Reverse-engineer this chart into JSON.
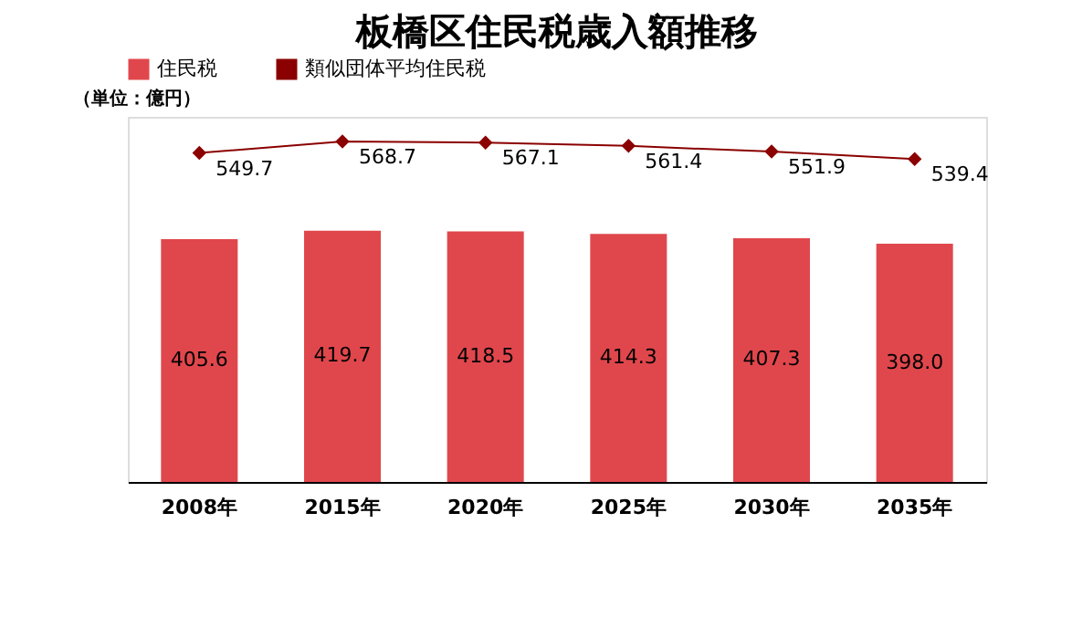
{
  "chart_data": {
    "type": "bar",
    "title": "板橋区住民税歳入額推移",
    "categories": [
      "2008年",
      "2015年",
      "2020年",
      "2025年",
      "2030年",
      "2035年"
    ],
    "series": [
      {
        "name": "住民税",
        "color": "#e0474c",
        "values": [
          405.6,
          419.7,
          418.5,
          414.3,
          407.3,
          398.0
        ],
        "value_labels": [
          "405.6",
          "419.7",
          "418.5",
          "414.3",
          "407.3",
          "398.0"
        ]
      },
      {
        "name": "類似団体平均住民税",
        "type": "line",
        "color": "#8b0000",
        "values": [
          549.7,
          568.7,
          567.1,
          561.4,
          551.9,
          539.4
        ],
        "value_labels": [
          "549.7",
          "568.7",
          "567.1",
          "561.4",
          "551.9",
          "539.4"
        ]
      }
    ],
    "annotations": [
      "（単位：億円）"
    ],
    "ylim": [
      0,
      610
    ],
    "tick_labels": "x",
    "grid": false,
    "legend": "top",
    "marker": "diamond",
    "line_style": "solid"
  }
}
